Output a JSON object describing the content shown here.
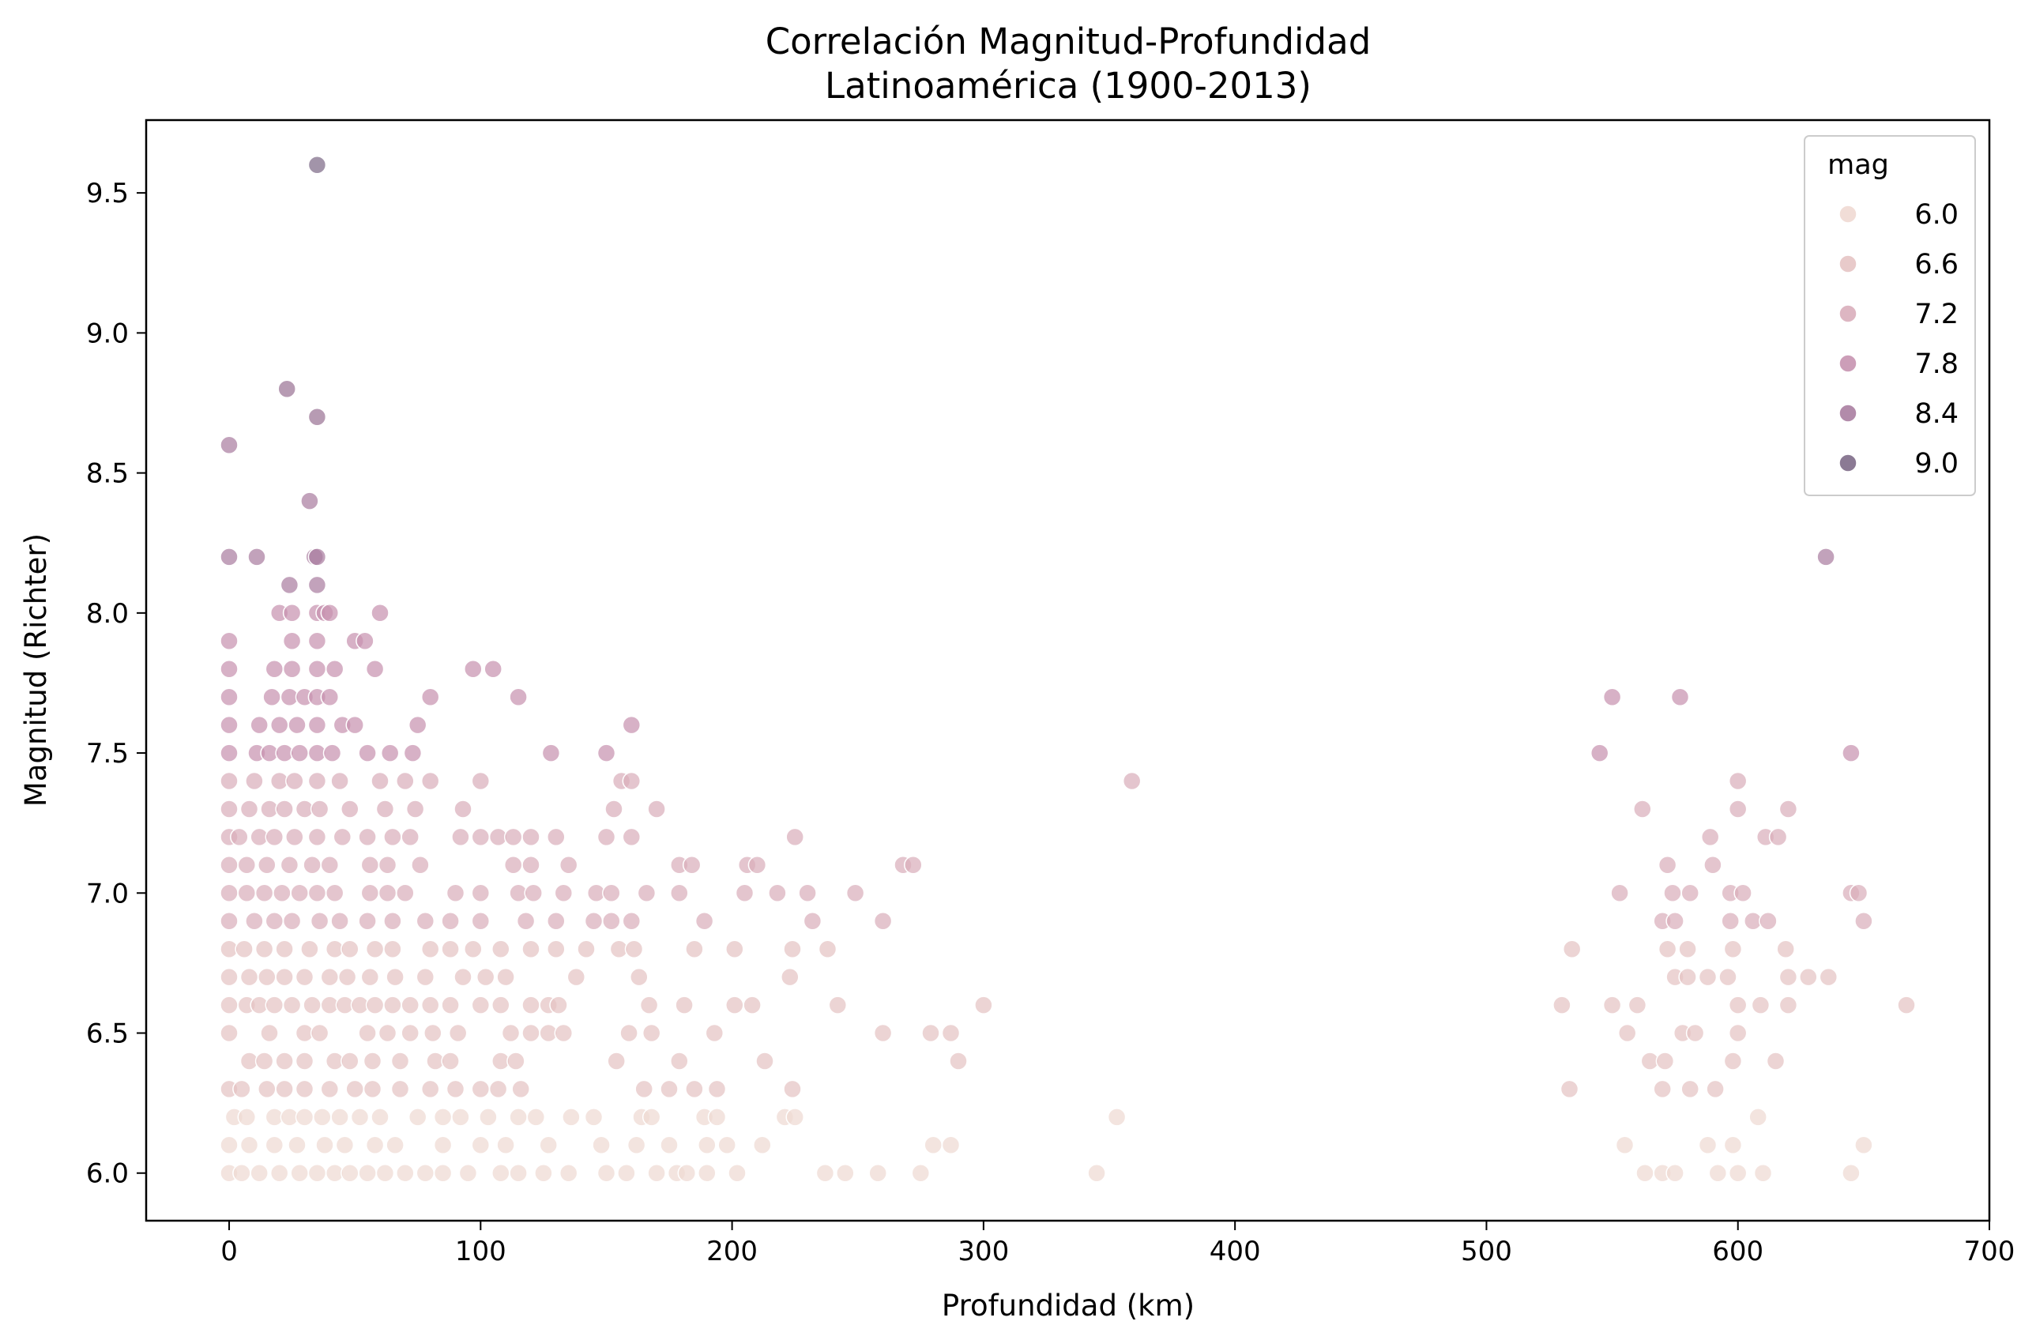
{
  "chart_data": {
    "type": "scatter",
    "title": [
      "Correlación Magnitud-Profundidad",
      "Latinoamérica (1900-2013)"
    ],
    "xlabel": "Profundidad (km)",
    "ylabel": "Magnitud (Richter)",
    "xlim": [
      -33,
      700
    ],
    "ylim": [
      5.83,
      9.76
    ],
    "xticks": [
      0,
      100,
      200,
      300,
      400,
      500,
      600,
      700
    ],
    "yticks": [
      6.0,
      6.5,
      7.0,
      7.5,
      8.0,
      8.5,
      9.0,
      9.5
    ],
    "grid": false,
    "hue_variable": "mag",
    "legend": {
      "title": "mag",
      "placement": "top-right",
      "entries": [
        {
          "label": "6.0",
          "color": "#efd9d3"
        },
        {
          "label": "6.6",
          "color": "#e5c4c4"
        },
        {
          "label": "7.2",
          "color": "#d9aebb"
        },
        {
          "label": "7.8",
          "color": "#c793b0"
        },
        {
          "label": "8.4",
          "color": "#aa7ea1"
        },
        {
          "label": "9.0",
          "color": "#7e6b88"
        }
      ]
    },
    "point_colors": [
      {
        "min": 5.9,
        "color": "#efd9d3"
      },
      {
        "min": 6.3,
        "color": "#e5c4c4"
      },
      {
        "min": 6.85,
        "color": "#d9aebb"
      },
      {
        "min": 7.45,
        "color": "#c793b0"
      },
      {
        "min": 8.05,
        "color": "#aa7ea1"
      },
      {
        "min": 8.65,
        "color": "#9b7596"
      },
      {
        "min": 9.2,
        "color": "#7e6b88"
      }
    ],
    "point_alpha": 0.72,
    "points": [
      [
        0,
        6.0
      ],
      [
        5,
        6.0
      ],
      [
        12,
        6.0
      ],
      [
        20,
        6.0
      ],
      [
        28,
        6.0
      ],
      [
        35,
        6.0
      ],
      [
        42,
        6.0
      ],
      [
        48,
        6.0
      ],
      [
        55,
        6.0
      ],
      [
        62,
        6.0
      ],
      [
        70,
        6.0
      ],
      [
        78,
        6.0
      ],
      [
        85,
        6.0
      ],
      [
        95,
        6.0
      ],
      [
        108,
        6.0
      ],
      [
        115,
        6.0
      ],
      [
        125,
        6.0
      ],
      [
        135,
        6.0
      ],
      [
        150,
        6.0
      ],
      [
        158,
        6.0
      ],
      [
        170,
        6.0
      ],
      [
        178,
        6.0
      ],
      [
        182,
        6.0
      ],
      [
        190,
        6.0
      ],
      [
        202,
        6.0
      ],
      [
        237,
        6.0
      ],
      [
        245,
        6.0
      ],
      [
        258,
        6.0
      ],
      [
        275,
        6.0
      ],
      [
        345,
        6.0
      ],
      [
        563,
        6.0
      ],
      [
        570,
        6.0
      ],
      [
        575,
        6.0
      ],
      [
        592,
        6.0
      ],
      [
        600,
        6.0
      ],
      [
        610,
        6.0
      ],
      [
        645,
        6.0
      ],
      [
        0,
        6.1
      ],
      [
        8,
        6.1
      ],
      [
        18,
        6.1
      ],
      [
        27,
        6.1
      ],
      [
        38,
        6.1
      ],
      [
        46,
        6.1
      ],
      [
        58,
        6.1
      ],
      [
        66,
        6.1
      ],
      [
        85,
        6.1
      ],
      [
        100,
        6.1
      ],
      [
        110,
        6.1
      ],
      [
        127,
        6.1
      ],
      [
        148,
        6.1
      ],
      [
        162,
        6.1
      ],
      [
        175,
        6.1
      ],
      [
        190,
        6.1
      ],
      [
        198,
        6.1
      ],
      [
        212,
        6.1
      ],
      [
        280,
        6.1
      ],
      [
        287,
        6.1
      ],
      [
        555,
        6.1
      ],
      [
        588,
        6.1
      ],
      [
        598,
        6.1
      ],
      [
        650,
        6.1
      ],
      [
        2,
        6.2
      ],
      [
        7,
        6.2
      ],
      [
        18,
        6.2
      ],
      [
        24,
        6.2
      ],
      [
        30,
        6.2
      ],
      [
        37,
        6.2
      ],
      [
        44,
        6.2
      ],
      [
        52,
        6.2
      ],
      [
        60,
        6.2
      ],
      [
        75,
        6.2
      ],
      [
        85,
        6.2
      ],
      [
        92,
        6.2
      ],
      [
        103,
        6.2
      ],
      [
        115,
        6.2
      ],
      [
        122,
        6.2
      ],
      [
        136,
        6.2
      ],
      [
        145,
        6.2
      ],
      [
        164,
        6.2
      ],
      [
        168,
        6.2
      ],
      [
        189,
        6.2
      ],
      [
        194,
        6.2
      ],
      [
        221,
        6.2
      ],
      [
        225,
        6.2
      ],
      [
        353,
        6.2
      ],
      [
        608,
        6.2
      ],
      [
        0,
        6.3
      ],
      [
        5,
        6.3
      ],
      [
        15,
        6.3
      ],
      [
        22,
        6.3
      ],
      [
        30,
        6.3
      ],
      [
        40,
        6.3
      ],
      [
        50,
        6.3
      ],
      [
        57,
        6.3
      ],
      [
        68,
        6.3
      ],
      [
        80,
        6.3
      ],
      [
        90,
        6.3
      ],
      [
        100,
        6.3
      ],
      [
        107,
        6.3
      ],
      [
        116,
        6.3
      ],
      [
        165,
        6.3
      ],
      [
        175,
        6.3
      ],
      [
        185,
        6.3
      ],
      [
        194,
        6.3
      ],
      [
        224,
        6.3
      ],
      [
        533,
        6.3
      ],
      [
        570,
        6.3
      ],
      [
        581,
        6.3
      ],
      [
        591,
        6.3
      ],
      [
        8,
        6.4
      ],
      [
        14,
        6.4
      ],
      [
        22,
        6.4
      ],
      [
        30,
        6.4
      ],
      [
        42,
        6.4
      ],
      [
        48,
        6.4
      ],
      [
        57,
        6.4
      ],
      [
        68,
        6.4
      ],
      [
        82,
        6.4
      ],
      [
        88,
        6.4
      ],
      [
        108,
        6.4
      ],
      [
        114,
        6.4
      ],
      [
        154,
        6.4
      ],
      [
        179,
        6.4
      ],
      [
        213,
        6.4
      ],
      [
        290,
        6.4
      ],
      [
        565,
        6.4
      ],
      [
        571,
        6.4
      ],
      [
        598,
        6.4
      ],
      [
        615,
        6.4
      ],
      [
        0,
        6.5
      ],
      [
        16,
        6.5
      ],
      [
        30,
        6.5
      ],
      [
        36,
        6.5
      ],
      [
        55,
        6.5
      ],
      [
        63,
        6.5
      ],
      [
        72,
        6.5
      ],
      [
        81,
        6.5
      ],
      [
        91,
        6.5
      ],
      [
        112,
        6.5
      ],
      [
        120,
        6.5
      ],
      [
        127,
        6.5
      ],
      [
        133,
        6.5
      ],
      [
        159,
        6.5
      ],
      [
        168,
        6.5
      ],
      [
        193,
        6.5
      ],
      [
        260,
        6.5
      ],
      [
        279,
        6.5
      ],
      [
        287,
        6.5
      ],
      [
        556,
        6.5
      ],
      [
        578,
        6.5
      ],
      [
        583,
        6.5
      ],
      [
        600,
        6.5
      ],
      [
        0,
        6.6
      ],
      [
        7,
        6.6
      ],
      [
        12,
        6.6
      ],
      [
        18,
        6.6
      ],
      [
        25,
        6.6
      ],
      [
        33,
        6.6
      ],
      [
        40,
        6.6
      ],
      [
        46,
        6.6
      ],
      [
        52,
        6.6
      ],
      [
        58,
        6.6
      ],
      [
        65,
        6.6
      ],
      [
        72,
        6.6
      ],
      [
        80,
        6.6
      ],
      [
        88,
        6.6
      ],
      [
        100,
        6.6
      ],
      [
        108,
        6.6
      ],
      [
        120,
        6.6
      ],
      [
        127,
        6.6
      ],
      [
        131,
        6.6
      ],
      [
        167,
        6.6
      ],
      [
        181,
        6.6
      ],
      [
        201,
        6.6
      ],
      [
        208,
        6.6
      ],
      [
        242,
        6.6
      ],
      [
        300,
        6.6
      ],
      [
        530,
        6.6
      ],
      [
        550,
        6.6
      ],
      [
        560,
        6.6
      ],
      [
        600,
        6.6
      ],
      [
        609,
        6.6
      ],
      [
        620,
        6.6
      ],
      [
        667,
        6.6
      ],
      [
        0,
        6.7
      ],
      [
        8,
        6.7
      ],
      [
        15,
        6.7
      ],
      [
        22,
        6.7
      ],
      [
        30,
        6.7
      ],
      [
        40,
        6.7
      ],
      [
        47,
        6.7
      ],
      [
        56,
        6.7
      ],
      [
        66,
        6.7
      ],
      [
        78,
        6.7
      ],
      [
        93,
        6.7
      ],
      [
        102,
        6.7
      ],
      [
        110,
        6.7
      ],
      [
        138,
        6.7
      ],
      [
        163,
        6.7
      ],
      [
        223,
        6.7
      ],
      [
        575,
        6.7
      ],
      [
        580,
        6.7
      ],
      [
        588,
        6.7
      ],
      [
        596,
        6.7
      ],
      [
        620,
        6.7
      ],
      [
        628,
        6.7
      ],
      [
        636,
        6.7
      ],
      [
        0,
        6.8
      ],
      [
        6,
        6.8
      ],
      [
        14,
        6.8
      ],
      [
        22,
        6.8
      ],
      [
        32,
        6.8
      ],
      [
        42,
        6.8
      ],
      [
        48,
        6.8
      ],
      [
        58,
        6.8
      ],
      [
        65,
        6.8
      ],
      [
        80,
        6.8
      ],
      [
        88,
        6.8
      ],
      [
        97,
        6.8
      ],
      [
        108,
        6.8
      ],
      [
        120,
        6.8
      ],
      [
        130,
        6.8
      ],
      [
        142,
        6.8
      ],
      [
        155,
        6.8
      ],
      [
        161,
        6.8
      ],
      [
        185,
        6.8
      ],
      [
        201,
        6.8
      ],
      [
        224,
        6.8
      ],
      [
        238,
        6.8
      ],
      [
        534,
        6.8
      ],
      [
        572,
        6.8
      ],
      [
        580,
        6.8
      ],
      [
        598,
        6.8
      ],
      [
        619,
        6.8
      ],
      [
        0,
        6.9
      ],
      [
        10,
        6.9
      ],
      [
        18,
        6.9
      ],
      [
        25,
        6.9
      ],
      [
        36,
        6.9
      ],
      [
        44,
        6.9
      ],
      [
        55,
        6.9
      ],
      [
        65,
        6.9
      ],
      [
        78,
        6.9
      ],
      [
        88,
        6.9
      ],
      [
        100,
        6.9
      ],
      [
        118,
        6.9
      ],
      [
        130,
        6.9
      ],
      [
        145,
        6.9
      ],
      [
        152,
        6.9
      ],
      [
        160,
        6.9
      ],
      [
        189,
        6.9
      ],
      [
        232,
        6.9
      ],
      [
        260,
        6.9
      ],
      [
        570,
        6.9
      ],
      [
        575,
        6.9
      ],
      [
        597,
        6.9
      ],
      [
        606,
        6.9
      ],
      [
        612,
        6.9
      ],
      [
        650,
        6.9
      ],
      [
        0,
        7.0
      ],
      [
        7,
        7.0
      ],
      [
        14,
        7.0
      ],
      [
        21,
        7.0
      ],
      [
        28,
        7.0
      ],
      [
        35,
        7.0
      ],
      [
        42,
        7.0
      ],
      [
        56,
        7.0
      ],
      [
        63,
        7.0
      ],
      [
        70,
        7.0
      ],
      [
        90,
        7.0
      ],
      [
        100,
        7.0
      ],
      [
        115,
        7.0
      ],
      [
        121,
        7.0
      ],
      [
        133,
        7.0
      ],
      [
        146,
        7.0
      ],
      [
        152,
        7.0
      ],
      [
        166,
        7.0
      ],
      [
        179,
        7.0
      ],
      [
        205,
        7.0
      ],
      [
        218,
        7.0
      ],
      [
        230,
        7.0
      ],
      [
        249,
        7.0
      ],
      [
        553,
        7.0
      ],
      [
        574,
        7.0
      ],
      [
        581,
        7.0
      ],
      [
        597,
        7.0
      ],
      [
        602,
        7.0
      ],
      [
        645,
        7.0
      ],
      [
        648,
        7.0
      ],
      [
        0,
        7.1
      ],
      [
        7,
        7.1
      ],
      [
        15,
        7.1
      ],
      [
        24,
        7.1
      ],
      [
        33,
        7.1
      ],
      [
        40,
        7.1
      ],
      [
        56,
        7.1
      ],
      [
        63,
        7.1
      ],
      [
        76,
        7.1
      ],
      [
        113,
        7.1
      ],
      [
        120,
        7.1
      ],
      [
        135,
        7.1
      ],
      [
        179,
        7.1
      ],
      [
        184,
        7.1
      ],
      [
        206,
        7.1
      ],
      [
        210,
        7.1
      ],
      [
        268,
        7.1
      ],
      [
        272,
        7.1
      ],
      [
        572,
        7.1
      ],
      [
        590,
        7.1
      ],
      [
        0,
        7.2
      ],
      [
        4,
        7.2
      ],
      [
        12,
        7.2
      ],
      [
        18,
        7.2
      ],
      [
        26,
        7.2
      ],
      [
        35,
        7.2
      ],
      [
        45,
        7.2
      ],
      [
        55,
        7.2
      ],
      [
        65,
        7.2
      ],
      [
        72,
        7.2
      ],
      [
        92,
        7.2
      ],
      [
        100,
        7.2
      ],
      [
        107,
        7.2
      ],
      [
        113,
        7.2
      ],
      [
        120,
        7.2
      ],
      [
        130,
        7.2
      ],
      [
        150,
        7.2
      ],
      [
        160,
        7.2
      ],
      [
        225,
        7.2
      ],
      [
        589,
        7.2
      ],
      [
        611,
        7.2
      ],
      [
        616,
        7.2
      ],
      [
        0,
        7.3
      ],
      [
        8,
        7.3
      ],
      [
        16,
        7.3
      ],
      [
        22,
        7.3
      ],
      [
        30,
        7.3
      ],
      [
        36,
        7.3
      ],
      [
        48,
        7.3
      ],
      [
        62,
        7.3
      ],
      [
        74,
        7.3
      ],
      [
        93,
        7.3
      ],
      [
        153,
        7.3
      ],
      [
        170,
        7.3
      ],
      [
        562,
        7.3
      ],
      [
        600,
        7.3
      ],
      [
        620,
        7.3
      ],
      [
        0,
        7.4
      ],
      [
        10,
        7.4
      ],
      [
        20,
        7.4
      ],
      [
        26,
        7.4
      ],
      [
        35,
        7.4
      ],
      [
        44,
        7.4
      ],
      [
        60,
        7.4
      ],
      [
        70,
        7.4
      ],
      [
        80,
        7.4
      ],
      [
        100,
        7.4
      ],
      [
        156,
        7.4
      ],
      [
        160,
        7.4
      ],
      [
        359,
        7.4
      ],
      [
        600,
        7.4
      ],
      [
        0,
        7.5
      ],
      [
        11,
        7.5
      ],
      [
        16,
        7.5
      ],
      [
        22,
        7.5
      ],
      [
        28,
        7.5
      ],
      [
        35,
        7.5
      ],
      [
        41,
        7.5
      ],
      [
        55,
        7.5
      ],
      [
        64,
        7.5
      ],
      [
        73,
        7.5
      ],
      [
        128,
        7.5
      ],
      [
        150,
        7.5
      ],
      [
        545,
        7.5
      ],
      [
        645,
        7.5
      ],
      [
        0,
        7.6
      ],
      [
        12,
        7.6
      ],
      [
        20,
        7.6
      ],
      [
        27,
        7.6
      ],
      [
        35,
        7.6
      ],
      [
        45,
        7.6
      ],
      [
        50,
        7.6
      ],
      [
        75,
        7.6
      ],
      [
        160,
        7.6
      ],
      [
        0,
        7.7
      ],
      [
        17,
        7.7
      ],
      [
        24,
        7.7
      ],
      [
        30,
        7.7
      ],
      [
        35,
        7.7
      ],
      [
        40,
        7.7
      ],
      [
        80,
        7.7
      ],
      [
        115,
        7.7
      ],
      [
        550,
        7.7
      ],
      [
        577,
        7.7
      ],
      [
        0,
        7.8
      ],
      [
        18,
        7.8
      ],
      [
        25,
        7.8
      ],
      [
        35,
        7.8
      ],
      [
        42,
        7.8
      ],
      [
        58,
        7.8
      ],
      [
        97,
        7.8
      ],
      [
        105,
        7.8
      ],
      [
        0,
        7.9
      ],
      [
        25,
        7.9
      ],
      [
        35,
        7.9
      ],
      [
        50,
        7.9
      ],
      [
        54,
        7.9
      ],
      [
        20,
        8.0
      ],
      [
        25,
        8.0
      ],
      [
        35,
        8.0
      ],
      [
        38,
        8.0
      ],
      [
        40,
        8.0
      ],
      [
        60,
        8.0
      ],
      [
        24,
        8.1
      ],
      [
        35,
        8.1
      ],
      [
        0,
        8.2
      ],
      [
        11,
        8.2
      ],
      [
        34,
        8.2
      ],
      [
        35,
        8.2
      ],
      [
        635,
        8.2
      ],
      [
        32,
        8.4
      ],
      [
        0,
        8.6
      ],
      [
        35,
        8.7
      ],
      [
        23,
        8.8
      ],
      [
        35,
        9.6
      ]
    ]
  }
}
